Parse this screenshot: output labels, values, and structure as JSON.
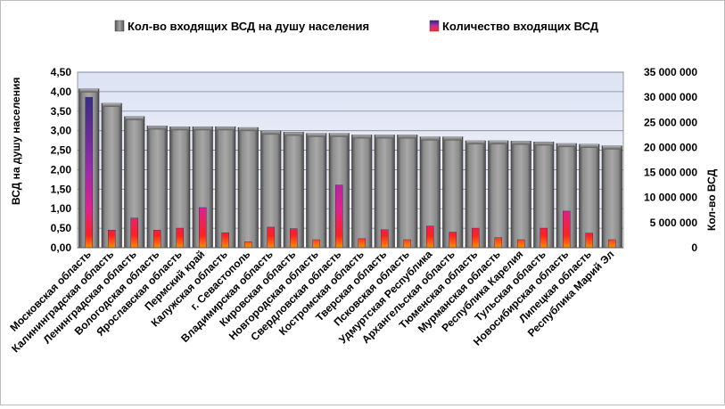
{
  "chart_data": {
    "type": "bar",
    "title": "",
    "categories": [
      "Московская область",
      "Калининградская область",
      "Ленинградская область",
      "Вологодская область",
      "Ярославская область",
      "Пермский край",
      "Калужская область",
      "г. Севастополь",
      "Владимирская область",
      "Кировская область",
      "Новгородская область",
      "Свердловская область",
      "Костромская область",
      "Тверская область",
      "Псковская область",
      "Удмуртская Республика",
      "Архангельская область",
      "Тюменская область",
      "Мурманская область",
      "Республика Карелия",
      "Тульская область",
      "Новосибирская область",
      "Липецкая область",
      "Республика Марий Эл"
    ],
    "series": [
      {
        "name": "Кол-во входящих ВСД на душу населения",
        "axis": "left",
        "color": "#7f7f7f",
        "values": [
          4.07,
          3.7,
          3.36,
          3.12,
          3.1,
          3.1,
          3.1,
          3.08,
          2.99,
          2.96,
          2.93,
          2.93,
          2.89,
          2.89,
          2.89,
          2.84,
          2.84,
          2.74,
          2.74,
          2.73,
          2.71,
          2.67,
          2.65,
          2.61
        ]
      },
      {
        "name": "Количество входящих ВСД",
        "axis": "right",
        "color": "#d62ea0",
        "values": [
          30000000,
          3500000,
          5900000,
          3500000,
          3900000,
          8000000,
          3000000,
          1200000,
          4100000,
          3800000,
          1600000,
          12500000,
          1800000,
          3600000,
          1600000,
          4300000,
          3100000,
          3900000,
          2000000,
          1600000,
          3900000,
          7300000,
          2900000,
          1600000
        ]
      }
    ],
    "yaxis_left": {
      "label": "ВСД на душу населения",
      "range": [
        0,
        4.5
      ],
      "ticks": [
        "0,00",
        "0,50",
        "1,00",
        "1,50",
        "2,00",
        "2,50",
        "3,00",
        "3,50",
        "4,00",
        "4,50"
      ]
    },
    "yaxis_right": {
      "label": "Кол-во ВСД",
      "range": [
        0,
        35000000
      ],
      "ticks": [
        "0",
        "5 000 000",
        "10 000 000",
        "15 000 000",
        "20 000 000",
        "25 000 000",
        "30 000 000",
        "35 000 000"
      ]
    },
    "grid": true,
    "legend_position": "top"
  }
}
